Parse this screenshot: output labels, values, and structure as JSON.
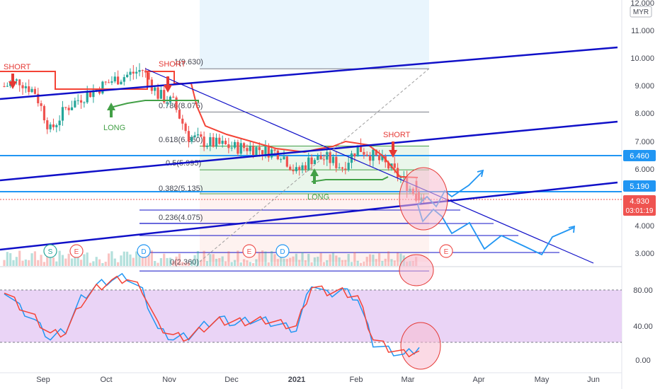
{
  "price_axis": {
    "unit": "MYR",
    "ticks": [
      "12.000",
      "11.000",
      "10.000",
      "9.000",
      "8.000",
      "7.000",
      "6.000",
      "5.000",
      "4.000",
      "3.000"
    ]
  },
  "osc_axis": {
    "ticks": [
      "80.00",
      "40.00",
      "0.00"
    ]
  },
  "time_axis": {
    "labels": [
      "Sep",
      "Oct",
      "Nov",
      "Dec",
      "2021",
      "Feb",
      "Mar",
      "Apr",
      "May",
      "Jun"
    ]
  },
  "badges": {
    "level_1": "6.460",
    "level_2": "5.190",
    "last_price": "4.930",
    "countdown": "03:01:19"
  },
  "fib_labels": [
    "1(9.630)",
    "0.786(8.075)",
    "0.618(6.850)",
    "0.5(5.995)",
    "0.382(5.135)",
    "0.236(4.075)",
    "0(2.360)"
  ],
  "annotations": {
    "short_1": "SHORT",
    "short_2": "SHORT",
    "short_3": "SHORT",
    "long_1": "LONG",
    "long_2": "LONG"
  },
  "event_markers": [
    "S",
    "E",
    "D",
    "E",
    "D",
    "E"
  ],
  "colors": {
    "candle_up": "#26a69a",
    "candle_down": "#ef5350",
    "trend_blue": "#1010c8",
    "level_blue": "#2196f3",
    "stop_red": "#f44336",
    "stop_green": "#43a047",
    "osc_band": "#e1bee7",
    "osc_k": "#2196f3",
    "osc_d": "#f44336"
  },
  "chart_data": [
    {
      "type": "candlestick",
      "title": "",
      "ylabel": "MYR",
      "ylim": [
        2.5,
        12.0
      ],
      "x": [
        "Aug 24",
        "Aug 31",
        "Sep 7",
        "Sep 14",
        "Sep 21",
        "Sep 28",
        "Oct 5",
        "Oct 12",
        "Oct 19",
        "Oct 26",
        "Nov 2",
        "Nov 9",
        "Nov 16",
        "Nov 23",
        "Nov 30",
        "Dec 7",
        "Dec 14",
        "Dec 21",
        "Dec 28",
        "Jan 4",
        "Jan 11",
        "Jan 18",
        "Jan 25",
        "Feb 1",
        "Feb 8",
        "Feb 15",
        "Feb 22",
        "Mar 1"
      ],
      "close": [
        9.0,
        9.2,
        8.8,
        7.4,
        8.2,
        8.6,
        8.9,
        9.2,
        9.4,
        9.6,
        8.7,
        8.4,
        7.2,
        7.0,
        6.9,
        6.8,
        6.8,
        6.7,
        6.6,
        5.9,
        6.4,
        6.4,
        6.1,
        6.8,
        6.5,
        6.1,
        5.6,
        4.93
      ],
      "levels": [
        6.46,
        5.19
      ],
      "last_price": 4.93,
      "fibonacci": [
        {
          "ratio": 1,
          "price": 9.63
        },
        {
          "ratio": 0.786,
          "price": 8.075
        },
        {
          "ratio": 0.618,
          "price": 6.85
        },
        {
          "ratio": 0.5,
          "price": 5.995
        },
        {
          "ratio": 0.382,
          "price": 5.135
        },
        {
          "ratio": 0.236,
          "price": 4.075
        },
        {
          "ratio": 0,
          "price": 2.36
        }
      ]
    },
    {
      "type": "line",
      "title": "",
      "ylim": [
        -5,
        100
      ],
      "series": [
        {
          "values": [
            80,
            60,
            45,
            25,
            35,
            70,
            85,
            92,
            95,
            78,
            35,
            25,
            28,
            40,
            48,
            42,
            46,
            45,
            40,
            35,
            88,
            75,
            80,
            70,
            20,
            12,
            6,
            15
          ]
        },
        {
          "values": [
            78,
            62,
            48,
            30,
            32,
            65,
            82,
            90,
            93,
            80,
            40,
            28,
            26,
            37,
            45,
            44,
            44,
            46,
            42,
            38,
            84,
            78,
            78,
            72,
            25,
            14,
            8,
            11
          ]
        }
      ],
      "bands": [
        20,
        80
      ]
    }
  ]
}
